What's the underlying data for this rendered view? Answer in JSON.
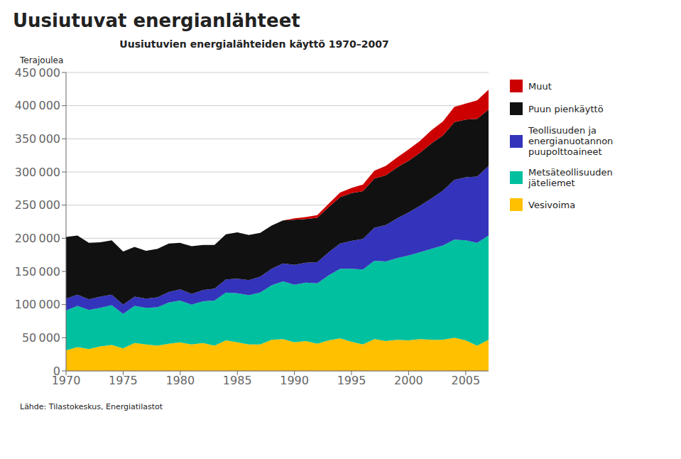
{
  "chart_data": {
    "type": "area",
    "title": "Uusiutuvat energianlähteet",
    "subtitle": "Uusiutuvien energialähteiden käyttö 1970–2007",
    "ylabel": "Terajoulea",
    "source": "Lähde: Tilastokeskus,  Energiatilastot",
    "x": [
      1970,
      1971,
      1972,
      1973,
      1974,
      1975,
      1976,
      1977,
      1978,
      1979,
      1980,
      1981,
      1982,
      1983,
      1984,
      1985,
      1986,
      1987,
      1988,
      1989,
      1990,
      1991,
      1992,
      1993,
      1994,
      1995,
      1996,
      1997,
      1998,
      1999,
      2000,
      2001,
      2002,
      2003,
      2004,
      2005,
      2006,
      2007
    ],
    "series": [
      {
        "name": "Vesivoima",
        "color": "#FFC000",
        "values": [
          31000,
          36000,
          33000,
          37000,
          39000,
          34000,
          42000,
          40000,
          38000,
          41000,
          43000,
          40000,
          42000,
          38000,
          46000,
          43000,
          40000,
          40000,
          47000,
          48000,
          43000,
          45000,
          41000,
          46000,
          49000,
          44000,
          40000,
          48000,
          45000,
          47000,
          46000,
          48000,
          47000,
          47000,
          50000,
          46000,
          38000,
          47000
        ]
      },
      {
        "name": "Metsäteollisuuden\njäteliemet",
        "color": "#00C0A0",
        "values": [
          60000,
          62000,
          59000,
          58000,
          60000,
          52000,
          56000,
          55000,
          58000,
          62000,
          63000,
          60000,
          63000,
          68000,
          72000,
          74000,
          74000,
          78000,
          82000,
          87000,
          87000,
          88000,
          91000,
          98000,
          105000,
          110000,
          113000,
          118000,
          120000,
          123000,
          128000,
          131000,
          137000,
          142000,
          148000,
          151000,
          155000,
          157000
        ]
      },
      {
        "name": "Teollisuuden ja\nenergianuotannon\npuupolttoaineet",
        "color": "#3333BB",
        "values": [
          18000,
          17000,
          16000,
          17000,
          16000,
          14000,
          14000,
          14000,
          15000,
          16000,
          17000,
          16000,
          17000,
          18000,
          20000,
          22000,
          23000,
          24000,
          25000,
          27000,
          30000,
          30000,
          32000,
          35000,
          38000,
          42000,
          46000,
          50000,
          55000,
          60000,
          65000,
          70000,
          76000,
          83000,
          90000,
          95000,
          100000,
          105000
        ]
      },
      {
        "name": "Puun pienkäyttö",
        "color": "#111111",
        "values": [
          93000,
          89000,
          85000,
          82000,
          82000,
          80000,
          75000,
          72000,
          73000,
          73000,
          70000,
          72000,
          68000,
          66000,
          68000,
          70000,
          68000,
          66000,
          65000,
          65000,
          68000,
          66000,
          67000,
          68000,
          70000,
          72000,
          72000,
          74000,
          75000,
          77000,
          78000,
          80000,
          83000,
          83000,
          87000,
          87000,
          87000,
          85000
        ]
      },
      {
        "name": "Muut",
        "color": "#CC0000",
        "values": [
          0,
          0,
          0,
          0,
          0,
          0,
          0,
          0,
          0,
          0,
          0,
          0,
          0,
          0,
          0,
          0,
          0,
          0,
          0,
          0,
          2000,
          3000,
          4000,
          5000,
          7000,
          8000,
          10000,
          12000,
          14000,
          15000,
          17000,
          18000,
          20000,
          21000,
          23000,
          24000,
          28000,
          30000
        ]
      }
    ],
    "stacked": true,
    "xlim": [
      1970,
      2007
    ],
    "xticks": [
      1970,
      1975,
      1980,
      1985,
      1990,
      1995,
      2000,
      2005
    ],
    "ylim": [
      0,
      450000
    ],
    "yticks": [
      0,
      {
        "value": 50000,
        "label": "50 000"
      },
      {
        "value": 100000,
        "label": "100 000"
      },
      {
        "value": 150000,
        "label": "150 000"
      },
      {
        "value": 200000,
        "label": "200 000"
      },
      {
        "value": 250000,
        "label": "250 000"
      },
      {
        "value": 300000,
        "label": "300 000"
      },
      {
        "value": 350000,
        "label": "350 000"
      },
      {
        "value": 400000,
        "label": "400 000"
      },
      {
        "value": 450000,
        "label": "450 000"
      }
    ],
    "grid": true,
    "legend": "right"
  }
}
